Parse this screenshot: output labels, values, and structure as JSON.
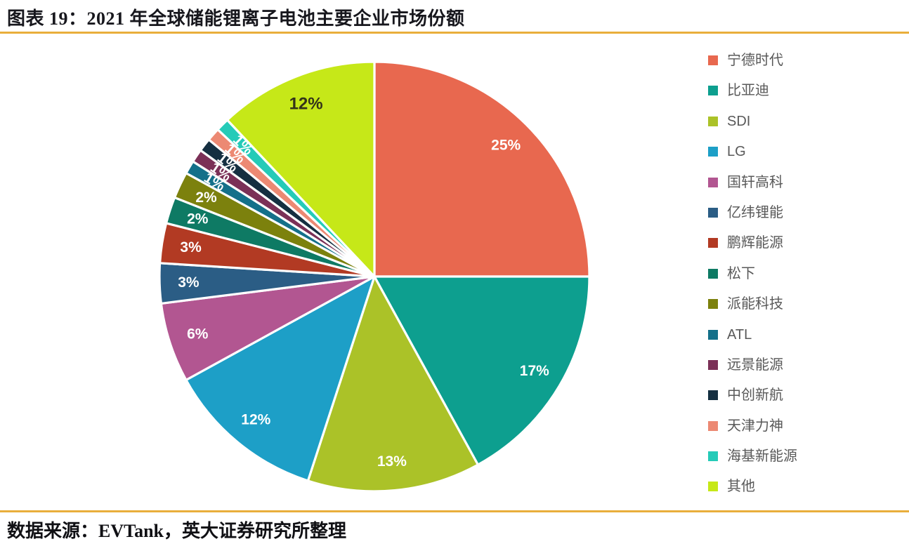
{
  "header": {
    "title": "图表 19：2021 年全球储能锂离子电池主要企业市场份额"
  },
  "footer": {
    "source": "数据来源：EVTank，英大证券研究所整理"
  },
  "accent": {
    "rule_color": "#E9AE3C",
    "legend_text_color": "#595959"
  },
  "chart_data": {
    "type": "pie",
    "title": "2021 年全球储能锂离子电池主要企业市场份额",
    "unit": "percent",
    "start_angle_deg": 0,
    "direction": "clockwise",
    "legend_position": "right",
    "labels_show": "percent",
    "separator_color": "#ffffff",
    "series": [
      {
        "name": "宁德时代",
        "value": 25,
        "label": "25%",
        "color": "#E8684F"
      },
      {
        "name": "比亚迪",
        "value": 17,
        "label": "17%",
        "color": "#0D9F8F"
      },
      {
        "name": "SDI",
        "value": 13,
        "label": "13%",
        "color": "#ABC228"
      },
      {
        "name": "LG",
        "value": 12,
        "label": "12%",
        "color": "#1D9FC7"
      },
      {
        "name": "国轩高科",
        "value": 6,
        "label": "6%",
        "color": "#B25691"
      },
      {
        "name": "亿纬锂能",
        "value": 3,
        "label": "3%",
        "color": "#2B5D85"
      },
      {
        "name": "鹏辉能源",
        "value": 3,
        "label": "3%",
        "color": "#B23A23"
      },
      {
        "name": "松下",
        "value": 2,
        "label": "2%",
        "color": "#0E7A64"
      },
      {
        "name": "派能科技",
        "value": 2,
        "label": "2%",
        "color": "#7C810D"
      },
      {
        "name": "ATL",
        "value": 1,
        "label": "1%",
        "color": "#14708A"
      },
      {
        "name": "远景能源",
        "value": 1,
        "label": "1%",
        "color": "#7B3057"
      },
      {
        "name": "中创新航",
        "value": 1,
        "label": "1%",
        "color": "#152F41"
      },
      {
        "name": "天津力神",
        "value": 1,
        "label": "1%",
        "color": "#EC8973"
      },
      {
        "name": "海基新能源",
        "value": 1,
        "label": "1%",
        "color": "#25CBB8"
      },
      {
        "name": "其他",
        "value": 12,
        "label": "12%",
        "color": "#C6E818",
        "label_color": "#33331A",
        "label_size": 24
      }
    ]
  }
}
